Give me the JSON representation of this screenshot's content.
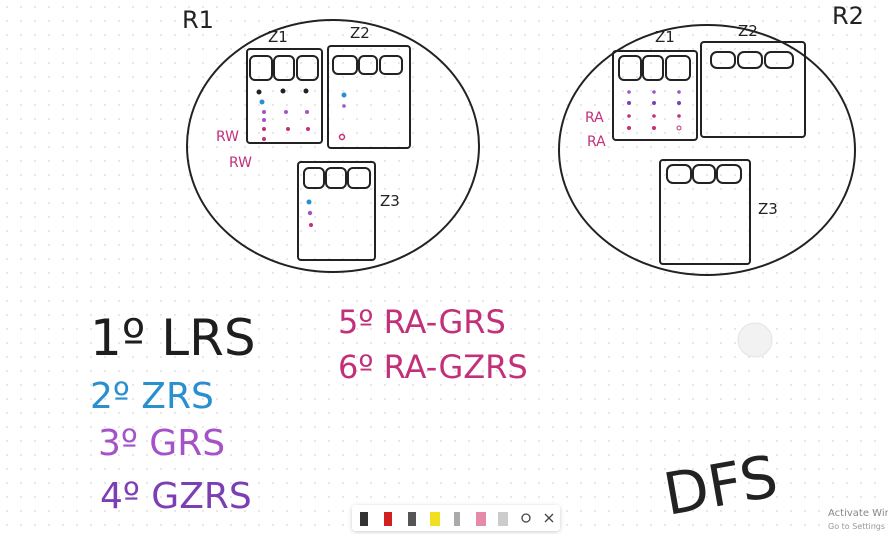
{
  "regions": [
    {
      "label": "R1",
      "zones": [
        "Z1",
        "Z2",
        "Z3"
      ],
      "notes": [
        "RW",
        "RW"
      ]
    },
    {
      "label": "R2",
      "zones": [
        "Z1",
        "Z2",
        "Z3"
      ],
      "notes": [
        "RA",
        "RA"
      ]
    }
  ],
  "list": [
    {
      "text": "1º LRS",
      "color": "#1e1e1e"
    },
    {
      "text": "2º ZRS",
      "color": "#2a8fcf"
    },
    {
      "text": "3º GRS",
      "color": "#a552c8"
    },
    {
      "text": "4º GZRS",
      "color": "#7b3fb3"
    },
    {
      "text": "5º RA-GRS",
      "color": "#c2307a"
    },
    {
      "text": "6º RA-GZRS",
      "color": "#c2307a"
    }
  ],
  "signature": "DFS",
  "watermark": {
    "title": "Activate Win",
    "subtitle": "Go to Settings t"
  }
}
